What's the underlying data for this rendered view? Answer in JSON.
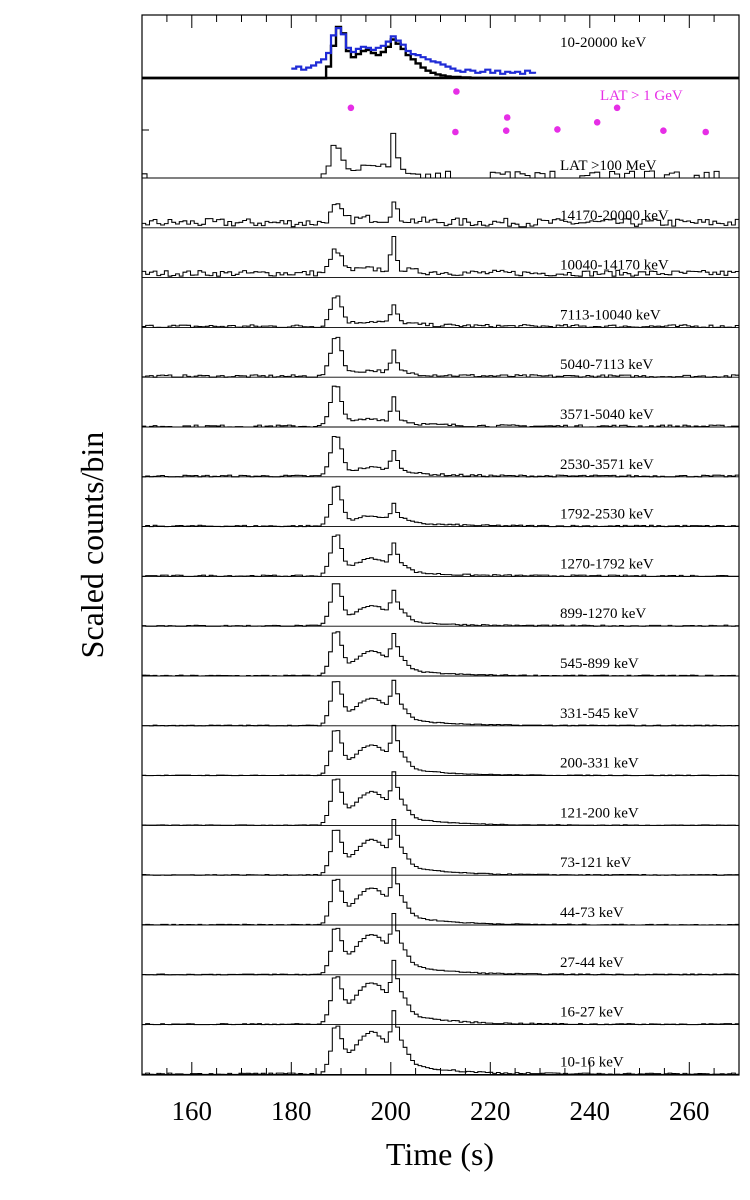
{
  "chart_data": {
    "type": "line",
    "description_style": "stacked multi-band light curves",
    "title": "",
    "xlabel": "Time (s)",
    "ylabel": "Scaled counts/bin",
    "xlim": [
      150,
      270
    ],
    "x_ticks": [
      160,
      180,
      200,
      220,
      240,
      260
    ],
    "grid": false,
    "panels": [
      {
        "name": "10-20000 keV",
        "style": "summed",
        "series": [
          {
            "name": "",
            "color": "#000000",
            "x": [
              150,
              186,
              187,
              188,
              189,
              190,
              191,
              192,
              193,
              194,
              195,
              196,
              197,
              198,
              199,
              200,
              201,
              202,
              203,
              204,
              205,
              206,
              207,
              208,
              209,
              210,
              211,
              212,
              214,
              216,
              220,
              230,
              270
            ],
            "y": [
              0.0,
              0.0,
              0.22,
              0.62,
              0.98,
              0.86,
              0.52,
              0.4,
              0.46,
              0.52,
              0.54,
              0.48,
              0.44,
              0.5,
              0.6,
              0.74,
              0.66,
              0.56,
              0.44,
              0.36,
              0.28,
              0.2,
              0.14,
              0.1,
              0.07,
              0.05,
              0.03,
              0.02,
              0.01,
              0.0,
              0.0,
              0.0,
              0.0
            ]
          },
          {
            "name": "",
            "color": "#1f2bd6",
            "x": [
              180,
              181,
              182,
              183,
              184,
              185,
              186,
              187,
              188,
              189,
              190,
              191,
              192,
              193,
              194,
              195,
              196,
              197,
              198,
              199,
              200,
              201,
              202,
              203,
              204,
              205,
              206,
              207,
              208,
              209,
              210,
              211,
              212,
              213,
              214,
              215,
              216,
              217,
              218,
              219,
              220,
              221,
              222,
              223,
              224,
              225,
              226,
              227,
              228,
              229
            ],
            "y": [
              0.18,
              0.22,
              0.16,
              0.2,
              0.24,
              0.3,
              0.36,
              0.48,
              0.82,
              0.96,
              0.84,
              0.58,
              0.5,
              0.56,
              0.6,
              0.58,
              0.54,
              0.58,
              0.62,
              0.7,
              0.8,
              0.72,
              0.64,
              0.52,
              0.46,
              0.44,
              0.4,
              0.36,
              0.32,
              0.3,
              0.26,
              0.22,
              0.18,
              0.14,
              0.12,
              0.16,
              0.14,
              0.1,
              0.12,
              0.16,
              0.1,
              0.14,
              0.08,
              0.12,
              0.1,
              0.12,
              0.08,
              0.14,
              0.1,
              0.08
            ]
          }
        ]
      },
      {
        "name": "LAT > 1 GeV",
        "style": "photons",
        "color": "#e62ee6",
        "photons": [
          {
            "time": 192.0,
            "energy_level": 0.55
          },
          {
            "time": 213.0,
            "energy_level": 0.0
          },
          {
            "time": 213.2,
            "energy_level": 0.92
          },
          {
            "time": 223.2,
            "energy_level": 0.03
          },
          {
            "time": 223.4,
            "energy_level": 0.33
          },
          {
            "time": 233.5,
            "energy_level": 0.06
          },
          {
            "time": 241.5,
            "energy_level": 0.22
          },
          {
            "time": 245.5,
            "energy_level": 0.55
          },
          {
            "time": 254.8,
            "energy_level": 0.03
          },
          {
            "time": 263.3,
            "energy_level": 0.0
          }
        ]
      },
      {
        "name": "LAT >100 MeV",
        "style": "sparse",
        "peak1": 0.72,
        "peak2": 0.82,
        "hump": 0.18,
        "tail": 0.25,
        "noise": 0.05
      },
      {
        "name": "14170-20000 keV",
        "style": "hist",
        "peak1": 0.34,
        "peak2": 0.36,
        "hump": 0.04,
        "tail": 0.18,
        "noise": 0.1,
        "offset": 0.06
      },
      {
        "name": "10040-14170 keV",
        "style": "hist",
        "peak1": 0.52,
        "peak2": 0.7,
        "hump": 0.04,
        "tail": 0.18,
        "noise": 0.07,
        "offset": 0.06
      },
      {
        "name": "7113-10040 keV",
        "style": "hist",
        "peak1": 0.7,
        "peak2": 0.38,
        "hump": 0.05,
        "tail": 0.2,
        "noise": 0.04
      },
      {
        "name": "5040-7113 keV",
        "style": "hist",
        "peak1": 0.92,
        "peak2": 0.45,
        "hump": 0.06,
        "tail": 0.22,
        "noise": 0.035
      },
      {
        "name": "3571-5040 keV",
        "style": "hist",
        "peak1": 0.92,
        "peak2": 0.52,
        "hump": 0.08,
        "tail": 0.25,
        "noise": 0.03
      },
      {
        "name": "2530-3571 keV",
        "style": "hist",
        "peak1": 0.92,
        "peak2": 0.42,
        "hump": 0.1,
        "tail": 0.28,
        "noise": 0.025
      },
      {
        "name": "1792-2530 keV",
        "style": "hist",
        "peak1": 0.9,
        "peak2": 0.28,
        "hump": 0.12,
        "tail": 0.3,
        "noise": 0.02
      },
      {
        "name": "1270-1792 keV",
        "style": "hist",
        "peak1": 0.92,
        "peak2": 0.42,
        "hump": 0.24,
        "tail": 0.34,
        "noise": 0.02
      },
      {
        "name": "899-1270 keV",
        "style": "hist",
        "peak1": 0.94,
        "peak2": 0.42,
        "hump": 0.28,
        "tail": 0.38,
        "noise": 0.015
      },
      {
        "name": "545-899 keV",
        "style": "hist",
        "peak1": 0.96,
        "peak2": 0.48,
        "hump": 0.34,
        "tail": 0.44,
        "noise": 0.012
      },
      {
        "name": "331-545 keV",
        "style": "hist",
        "peak1": 0.96,
        "peak2": 0.5,
        "hump": 0.38,
        "tail": 0.5,
        "noise": 0.01
      },
      {
        "name": "200-331 keV",
        "style": "hist",
        "peak1": 0.96,
        "peak2": 0.55,
        "hump": 0.42,
        "tail": 0.56,
        "noise": 0.008
      },
      {
        "name": "121-200 keV",
        "style": "hist",
        "peak1": 0.96,
        "peak2": 0.56,
        "hump": 0.46,
        "tail": 0.62,
        "noise": 0.008
      },
      {
        "name": "73-121 keV",
        "style": "hist",
        "peak1": 0.92,
        "peak2": 0.56,
        "hump": 0.48,
        "tail": 0.68,
        "noise": 0.01
      },
      {
        "name": "44-73 keV",
        "style": "hist",
        "peak1": 0.92,
        "peak2": 0.56,
        "hump": 0.5,
        "tail": 0.72,
        "noise": 0.01
      },
      {
        "name": "27-44 keV",
        "style": "hist",
        "peak1": 0.92,
        "peak2": 0.6,
        "hump": 0.54,
        "tail": 0.78,
        "noise": 0.012
      },
      {
        "name": "16-27 keV",
        "style": "hist",
        "peak1": 0.94,
        "peak2": 0.62,
        "hump": 0.56,
        "tail": 0.82,
        "noise": 0.015
      },
      {
        "name": "10-16 keV",
        "style": "hist",
        "peak1": 0.92,
        "peak2": 0.58,
        "hump": 0.56,
        "tail": 0.86,
        "noise": 0.02
      }
    ]
  }
}
